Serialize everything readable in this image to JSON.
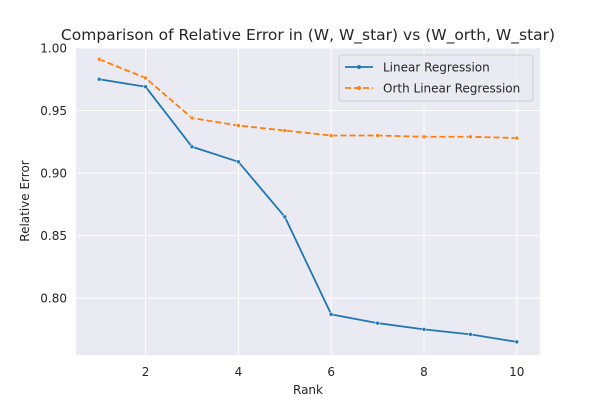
{
  "chart_data": {
    "type": "line",
    "title": "Comparison of Relative Error in (W, W_star) vs (W_orth, W_star)",
    "xlabel": "Rank",
    "ylabel": "Relative Error",
    "x": [
      1,
      2,
      3,
      4,
      5,
      6,
      7,
      8,
      9,
      10
    ],
    "xlim": [
      0.5,
      10.5
    ],
    "ylim": [
      0.7545,
      1.0
    ],
    "xticks": [
      2,
      4,
      6,
      8,
      10
    ],
    "yticks": [
      0.8,
      0.85,
      0.9,
      0.95,
      1.0
    ],
    "ytick_labels": [
      "0.80",
      "0.85",
      "0.90",
      "0.95",
      "1.00"
    ],
    "grid": true,
    "legend_position": "top-right",
    "series": [
      {
        "name": "Linear Regression",
        "color": "#1f77b4",
        "dash": "solid",
        "values": [
          0.975,
          0.969,
          0.921,
          0.909,
          0.865,
          0.787,
          0.78,
          0.775,
          0.771,
          0.765
        ]
      },
      {
        "name": "Orth Linear Regression",
        "color": "#ff7f0e",
        "dash": "dashed",
        "values": [
          0.991,
          0.976,
          0.944,
          0.938,
          0.934,
          0.93,
          0.93,
          0.929,
          0.929,
          0.928
        ]
      }
    ]
  }
}
